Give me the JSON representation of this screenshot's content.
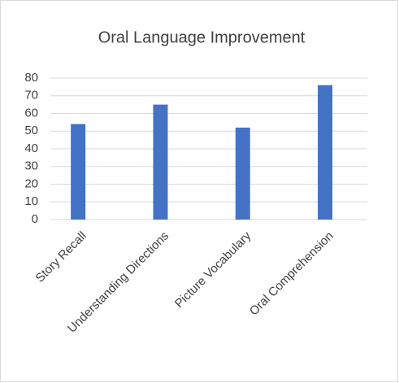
{
  "chart_data": {
    "type": "bar",
    "title": "Oral Language Improvement",
    "categories": [
      "Story Recall",
      "Understanding Directions",
      "Picture Vocabulary",
      "Oral Comprehension"
    ],
    "values": [
      54,
      65,
      52,
      76
    ],
    "color": "#4472c4",
    "ylim": [
      0,
      80
    ],
    "yticks": [
      0,
      10,
      20,
      30,
      40,
      50,
      60,
      70,
      80
    ],
    "grid": true
  }
}
